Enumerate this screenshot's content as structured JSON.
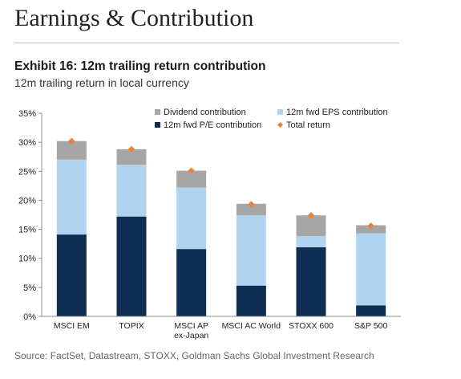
{
  "page": {
    "title": "Earnings & Contribution",
    "exhibit_title": "Exhibit 16: 12m trailing return contribution",
    "exhibit_subtitle": "12m trailing return in local currency",
    "source": "Source: FactSet, Datastream, STOXX, Goldman Sachs Global Investment Research"
  },
  "chart_data": {
    "type": "bar",
    "stacked": true,
    "categories": [
      [
        "MSCI EM"
      ],
      [
        "TOPIX"
      ],
      [
        "MSCI AP",
        "ex-Japan"
      ],
      [
        "MSCI AC World"
      ],
      [
        "STOXX 600"
      ],
      [
        "S&P 500"
      ]
    ],
    "series": [
      {
        "name": "12m fwd P/E contribution",
        "color": "#0d2d52",
        "values": [
          14.1,
          17.2,
          11.6,
          5.3,
          11.9,
          1.9
        ]
      },
      {
        "name": "12m fwd EPS contribution",
        "color": "#b0d4f0",
        "values": [
          12.9,
          8.9,
          10.6,
          12.1,
          1.9,
          12.4
        ]
      },
      {
        "name": "Dividend contribution",
        "color": "#a6a6a6",
        "values": [
          3.2,
          2.7,
          2.9,
          2.0,
          3.6,
          1.4
        ]
      }
    ],
    "markers": {
      "name": "Total return",
      "color": "#e8833a",
      "values": [
        30.2,
        28.8,
        25.1,
        19.3,
        17.4,
        15.6
      ]
    },
    "legend": {
      "position": "top-right",
      "entries": [
        {
          "name": "Dividend contribution",
          "color": "#a6a6a6",
          "kind": "square"
        },
        {
          "name": "12m fwd EPS contribution",
          "color": "#b0d4f0",
          "kind": "square"
        },
        {
          "name": "12m fwd P/E contribution",
          "color": "#0d2d52",
          "kind": "square"
        },
        {
          "name": "Total return",
          "color": "#e8833a",
          "kind": "diamond"
        }
      ]
    },
    "ylim": [
      0,
      35
    ],
    "yticks": [
      0,
      5,
      10,
      15,
      20,
      25,
      30,
      35
    ],
    "ytick_labels": [
      "0%",
      "5%",
      "10%",
      "15%",
      "20%",
      "25%",
      "30%",
      "35%"
    ],
    "grid": false,
    "xlabel": "",
    "ylabel": ""
  }
}
